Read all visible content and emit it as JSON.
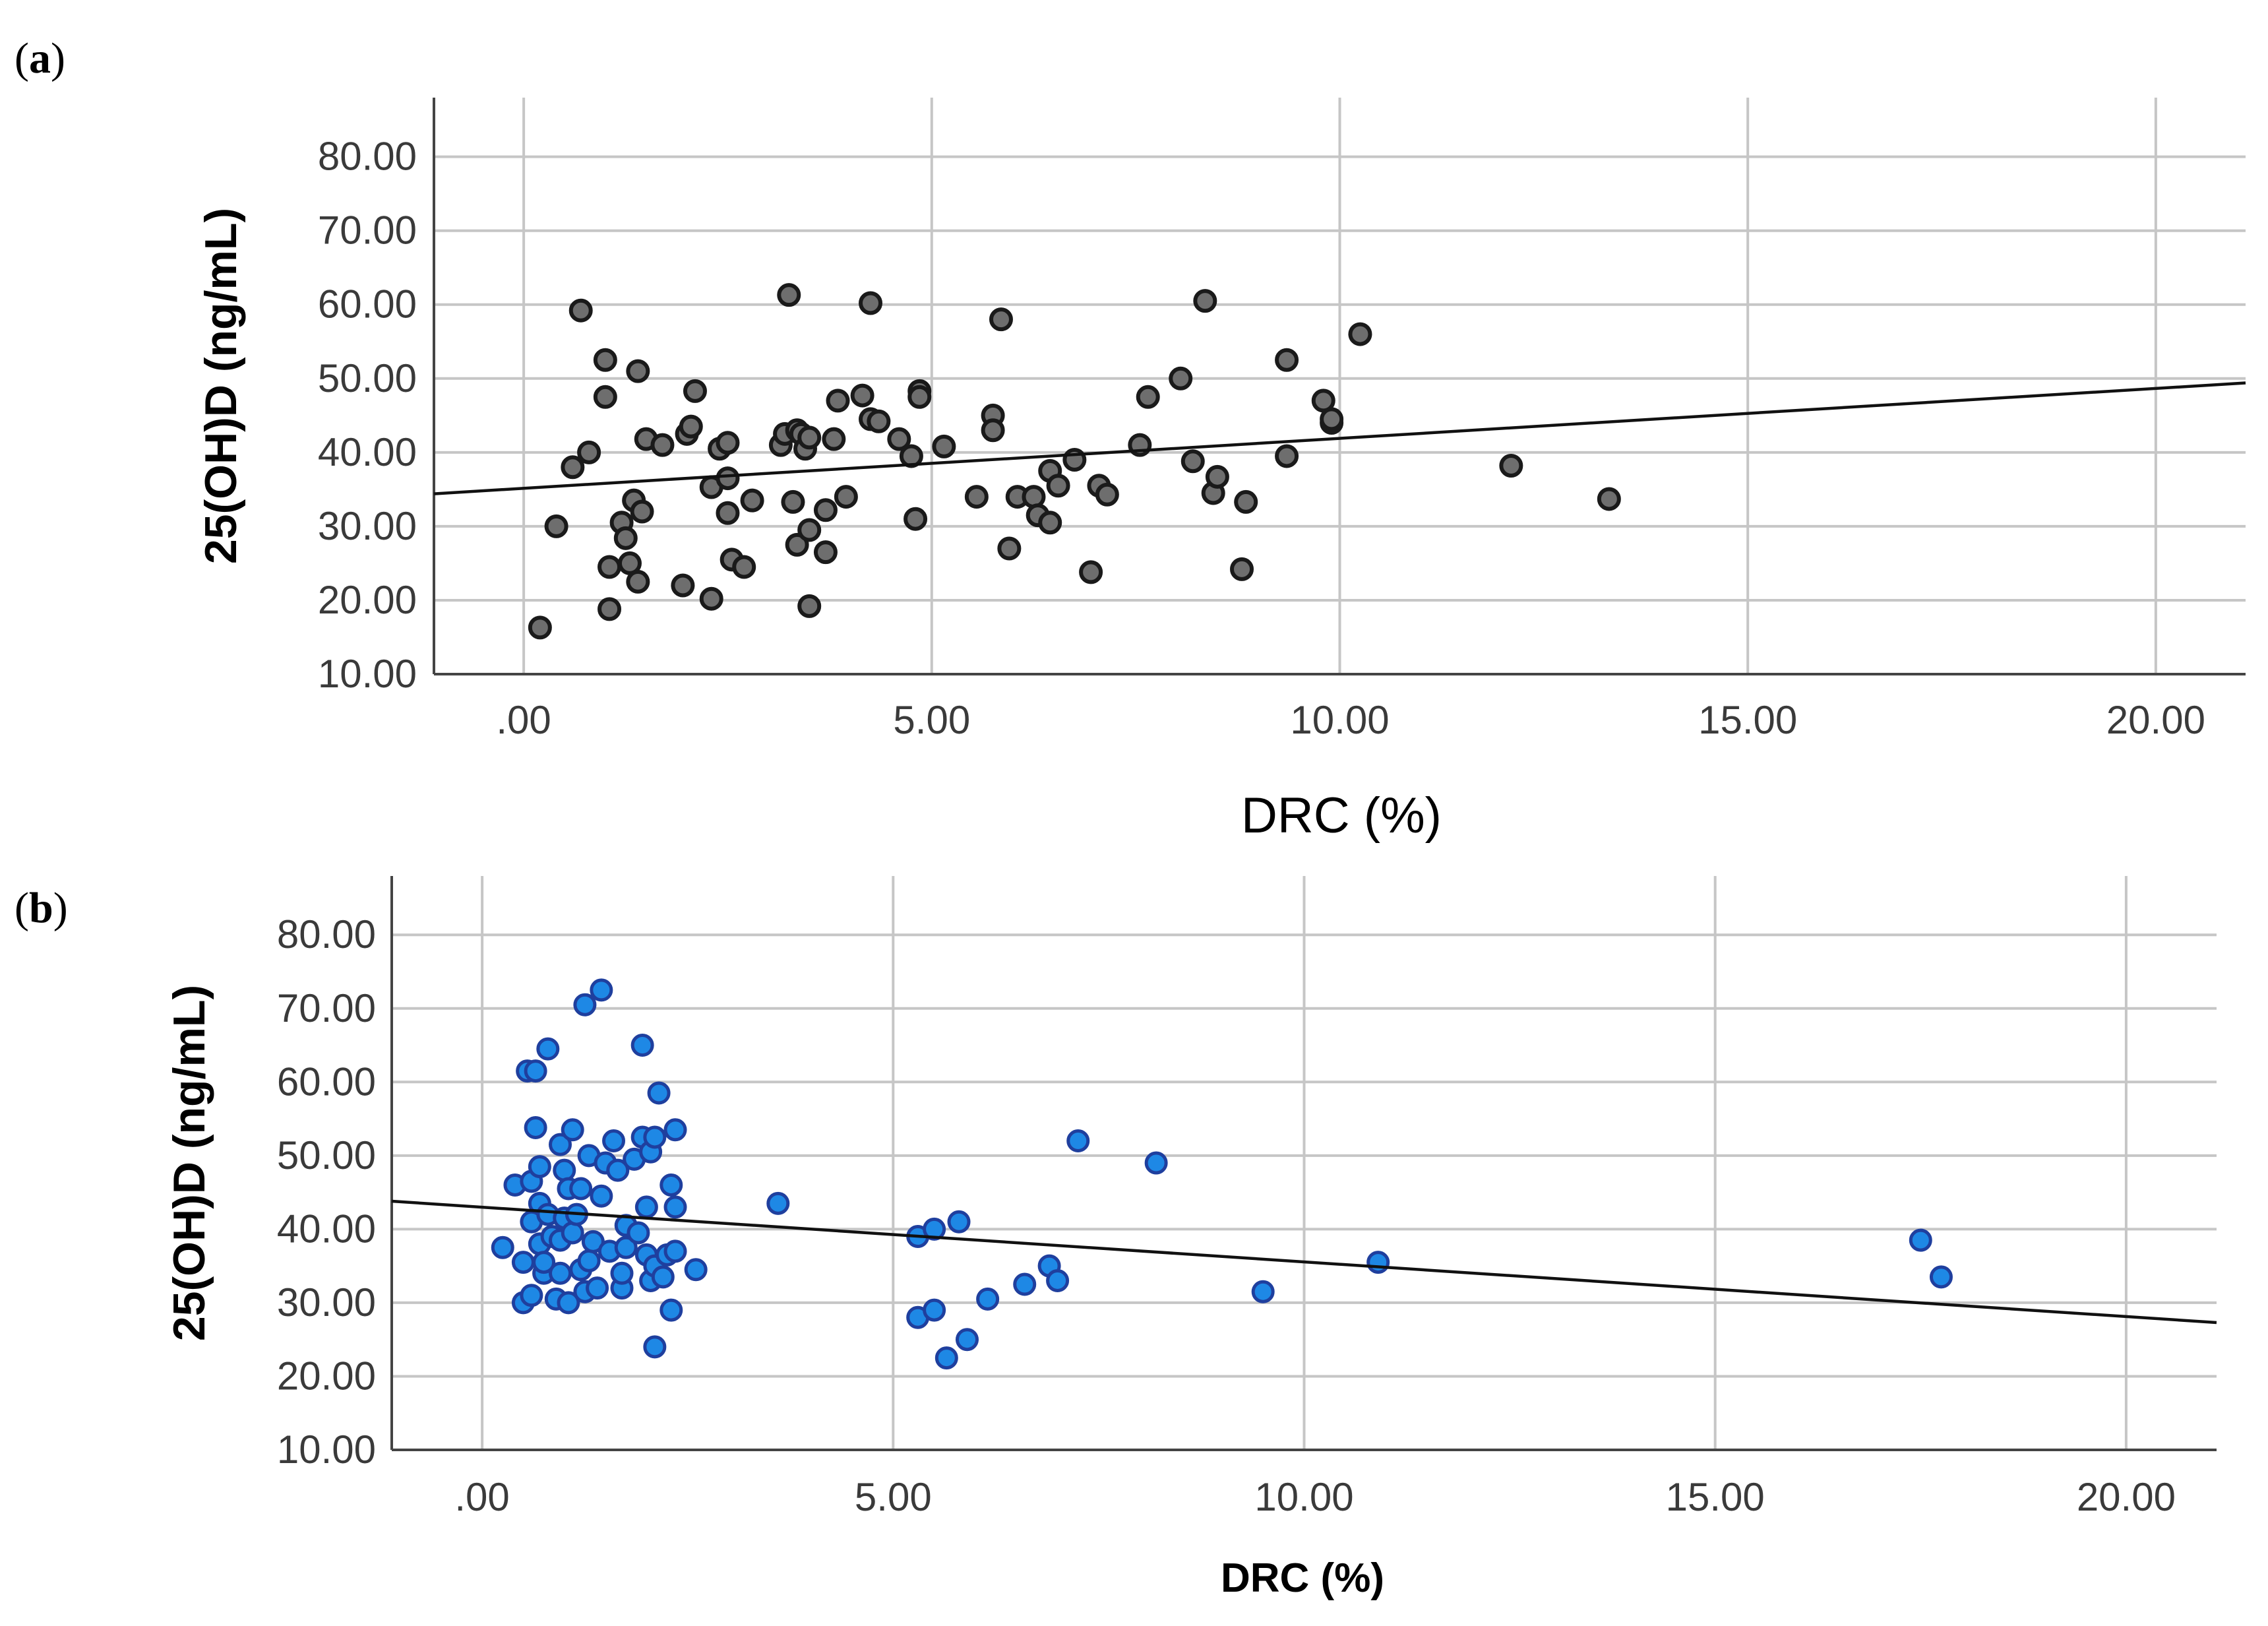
{
  "chart_data": [
    {
      "panel_label": "a",
      "type": "scatter",
      "xlabel": "DRC (%)",
      "ylabel": "25(OH)D (ng/mL)",
      "xlim": [
        -1.1,
        21.1
      ],
      "ylim": [
        10,
        88
      ],
      "x_ticks": [
        0,
        5,
        10,
        15,
        20
      ],
      "x_tick_labels": [
        ".00",
        "5.00",
        "10.00",
        "15.00",
        "20.00"
      ],
      "y_ticks": [
        10,
        20,
        30,
        40,
        50,
        60,
        70,
        80
      ],
      "y_tick_labels": [
        "10.00",
        "20.00",
        "30.00",
        "40.00",
        "50.00",
        "60.00",
        "70.00",
        "80.00"
      ],
      "grid": true,
      "marker_color": "#6e6e6e",
      "marker_edge": "#1a1a1a",
      "fit_line": {
        "x0": -1.1,
        "y0": 34.4,
        "x1": 21.1,
        "y1": 49.4
      },
      "points": [
        [
          0.2,
          16.3
        ],
        [
          0.4,
          30
        ],
        [
          0.6,
          38
        ],
        [
          0.7,
          59.2
        ],
        [
          0.8,
          40
        ],
        [
          1.0,
          52.5
        ],
        [
          1.0,
          47.5
        ],
        [
          1.05,
          18.8
        ],
        [
          1.05,
          24.5
        ],
        [
          1.2,
          30.5
        ],
        [
          1.25,
          28.4
        ],
        [
          1.3,
          25
        ],
        [
          1.35,
          33.5
        ],
        [
          1.4,
          51
        ],
        [
          1.4,
          22.5
        ],
        [
          1.45,
          32
        ],
        [
          1.5,
          41.8
        ],
        [
          1.7,
          41
        ],
        [
          1.95,
          22
        ],
        [
          2.0,
          42.5
        ],
        [
          2.05,
          43.5
        ],
        [
          2.1,
          48.3
        ],
        [
          2.3,
          20.2
        ],
        [
          2.3,
          35.3
        ],
        [
          2.4,
          40.5
        ],
        [
          2.5,
          41.3
        ],
        [
          2.5,
          31.8
        ],
        [
          2.5,
          36.5
        ],
        [
          2.55,
          25.5
        ],
        [
          2.7,
          24.5
        ],
        [
          2.8,
          33.5
        ],
        [
          3.15,
          41
        ],
        [
          3.2,
          42.5
        ],
        [
          3.25,
          61.3
        ],
        [
          3.3,
          33.3
        ],
        [
          3.35,
          43
        ],
        [
          3.35,
          27.5
        ],
        [
          3.4,
          42.5
        ],
        [
          3.45,
          40.5
        ],
        [
          3.5,
          29.5
        ],
        [
          3.5,
          42
        ],
        [
          3.5,
          19.2
        ],
        [
          3.7,
          32.2
        ],
        [
          3.7,
          26.5
        ],
        [
          3.8,
          41.8
        ],
        [
          3.85,
          47
        ],
        [
          3.95,
          34
        ],
        [
          4.15,
          47.7
        ],
        [
          4.25,
          44.5
        ],
        [
          4.25,
          60.2
        ],
        [
          4.35,
          44.2
        ],
        [
          4.6,
          41.8
        ],
        [
          4.75,
          39.5
        ],
        [
          4.8,
          31
        ],
        [
          4.85,
          48.3
        ],
        [
          4.85,
          47.5
        ],
        [
          5.15,
          40.8
        ],
        [
          5.55,
          34
        ],
        [
          5.75,
          45
        ],
        [
          5.75,
          43
        ],
        [
          5.85,
          58
        ],
        [
          5.95,
          27
        ],
        [
          6.05,
          34
        ],
        [
          6.25,
          34
        ],
        [
          6.3,
          31.5
        ],
        [
          6.45,
          30.5
        ],
        [
          6.45,
          37.5
        ],
        [
          6.55,
          35.5
        ],
        [
          6.75,
          39
        ],
        [
          6.95,
          23.8
        ],
        [
          7.05,
          35.5
        ],
        [
          7.15,
          34.3
        ],
        [
          7.55,
          41
        ],
        [
          7.65,
          47.5
        ],
        [
          8.05,
          50
        ],
        [
          8.2,
          38.8
        ],
        [
          8.35,
          60.5
        ],
        [
          8.45,
          34.5
        ],
        [
          8.5,
          36.7
        ],
        [
          8.8,
          24.2
        ],
        [
          8.85,
          33.3
        ],
        [
          9.35,
          52.5
        ],
        [
          9.35,
          39.5
        ],
        [
          9.8,
          47
        ],
        [
          9.9,
          44
        ],
        [
          9.9,
          44.5
        ],
        [
          10.25,
          56
        ],
        [
          12.1,
          38.2
        ],
        [
          13.3,
          33.7
        ]
      ]
    },
    {
      "panel_label": "b",
      "type": "scatter",
      "xlabel": "DRC (%)",
      "ylabel": "25(OH)D (ng/mL)",
      "xlim": [
        -1.1,
        21.1
      ],
      "ylim": [
        10,
        88
      ],
      "x_ticks": [
        0,
        5,
        10,
        15,
        20
      ],
      "x_tick_labels": [
        ".00",
        "5.00",
        "10.00",
        "15.00",
        "20.00"
      ],
      "y_ticks": [
        10,
        20,
        30,
        40,
        50,
        60,
        70,
        80
      ],
      "y_tick_labels": [
        "10.00",
        "20.00",
        "30.00",
        "40.00",
        "50.00",
        "60.00",
        "70.00",
        "80.00"
      ],
      "grid": true,
      "marker_color": "#1e88e5",
      "marker_edge": "#1f3f9e",
      "fit_line": {
        "x0": -1.1,
        "y0": 43.8,
        "x1": 21.1,
        "y1": 27.3
      },
      "points": [
        [
          0.25,
          37.5
        ],
        [
          0.4,
          46
        ],
        [
          0.5,
          30
        ],
        [
          0.5,
          35.5
        ],
        [
          0.55,
          61.5
        ],
        [
          0.6,
          31
        ],
        [
          0.6,
          41
        ],
        [
          0.6,
          46.5
        ],
        [
          0.65,
          61.5
        ],
        [
          0.65,
          53.8
        ],
        [
          0.7,
          48.5
        ],
        [
          0.7,
          43.5
        ],
        [
          0.7,
          38
        ],
        [
          0.75,
          34
        ],
        [
          0.75,
          35.5
        ],
        [
          0.8,
          64.5
        ],
        [
          0.8,
          42
        ],
        [
          0.85,
          39
        ],
        [
          0.9,
          30.5
        ],
        [
          0.95,
          51.5
        ],
        [
          0.95,
          34
        ],
        [
          0.95,
          38.5
        ],
        [
          1.0,
          48
        ],
        [
          1.0,
          41.5
        ],
        [
          1.05,
          45.5
        ],
        [
          1.05,
          30
        ],
        [
          1.1,
          39.5
        ],
        [
          1.1,
          53.5
        ],
        [
          1.15,
          42
        ],
        [
          1.2,
          45.5
        ],
        [
          1.2,
          34.5
        ],
        [
          1.25,
          70.5
        ],
        [
          1.25,
          31.5
        ],
        [
          1.3,
          50
        ],
        [
          1.3,
          35.7
        ],
        [
          1.35,
          38.3
        ],
        [
          1.4,
          32
        ],
        [
          1.45,
          44.5
        ],
        [
          1.45,
          72.5
        ],
        [
          1.5,
          49
        ],
        [
          1.55,
          37
        ],
        [
          1.6,
          52
        ],
        [
          1.65,
          48
        ],
        [
          1.7,
          32
        ],
        [
          1.7,
          34
        ],
        [
          1.75,
          37.5
        ],
        [
          1.75,
          40.5
        ],
        [
          1.85,
          49.5
        ],
        [
          1.9,
          39.5
        ],
        [
          1.95,
          65
        ],
        [
          1.95,
          52.5
        ],
        [
          2.0,
          43
        ],
        [
          2.0,
          36.5
        ],
        [
          2.05,
          50.5
        ],
        [
          2.05,
          33
        ],
        [
          2.1,
          35
        ],
        [
          2.1,
          52.5
        ],
        [
          2.1,
          24
        ],
        [
          2.15,
          58.5
        ],
        [
          2.2,
          33.5
        ],
        [
          2.25,
          36.5
        ],
        [
          2.3,
          29
        ],
        [
          2.3,
          46
        ],
        [
          2.35,
          43
        ],
        [
          2.35,
          37
        ],
        [
          2.35,
          53.5
        ],
        [
          2.6,
          34.5
        ],
        [
          3.6,
          43.5
        ],
        [
          5.3,
          39
        ],
        [
          5.3,
          28
        ],
        [
          5.5,
          40
        ],
        [
          5.5,
          29
        ],
        [
          5.65,
          22.5
        ],
        [
          5.8,
          41
        ],
        [
          5.9,
          25
        ],
        [
          6.15,
          30.5
        ],
        [
          6.6,
          32.5
        ],
        [
          6.9,
          35
        ],
        [
          7.0,
          33
        ],
        [
          7.25,
          52
        ],
        [
          8.2,
          49
        ],
        [
          9.5,
          31.5
        ],
        [
          10.9,
          35.5
        ],
        [
          17.5,
          38.5
        ],
        [
          17.75,
          33.5
        ]
      ]
    }
  ],
  "panel_labels": [
    {
      "text": "a"
    },
    {
      "text": "b"
    }
  ]
}
